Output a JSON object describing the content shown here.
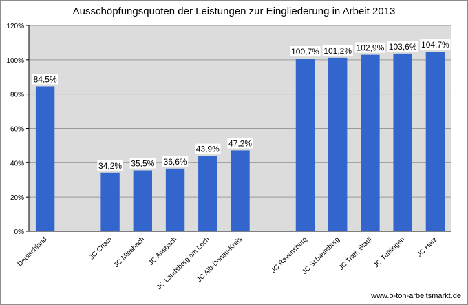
{
  "chart_data": {
    "type": "bar",
    "title": "Ausschöpfungsquoten der Leistungen zur Eingliederung in Arbeit 2013",
    "xlabel": "",
    "ylabel": "",
    "ylim": [
      0,
      120
    ],
    "y_ticks": [
      "0%",
      "20%",
      "40%",
      "60%",
      "80%",
      "100%",
      "120%"
    ],
    "y_tick_values": [
      0,
      20,
      40,
      60,
      80,
      100,
      120
    ],
    "grid": true,
    "legend": "none",
    "categories": [
      "Deutschland",
      "",
      "JC Cham",
      "JC Miesbach",
      "JC Ansbach",
      "JC Landsberg am Lech",
      "JC Alb-Donau-Kreis",
      "",
      "JC Ravensburg",
      "JC Schaumburg",
      "JC Trier, Stadt",
      "JC Tuttlingen",
      "JC Harz"
    ],
    "values": [
      84.5,
      null,
      34.2,
      35.5,
      36.6,
      43.9,
      47.2,
      null,
      100.7,
      101.2,
      102.9,
      103.6,
      104.7
    ],
    "data_labels": [
      "84,5%",
      "",
      "34,2%",
      "35,5%",
      "36,6%",
      "43,9%",
      "47,2%",
      "",
      "100,7%",
      "101,2%",
      "102,9%",
      "103,6%",
      "104,7%"
    ],
    "colors": {
      "bar": "#3366cc",
      "plot_bg": "#dcdcdc",
      "grid": "#9a9a9a"
    }
  },
  "source_text": "www.o-ton-arbeitsmarkt.de"
}
